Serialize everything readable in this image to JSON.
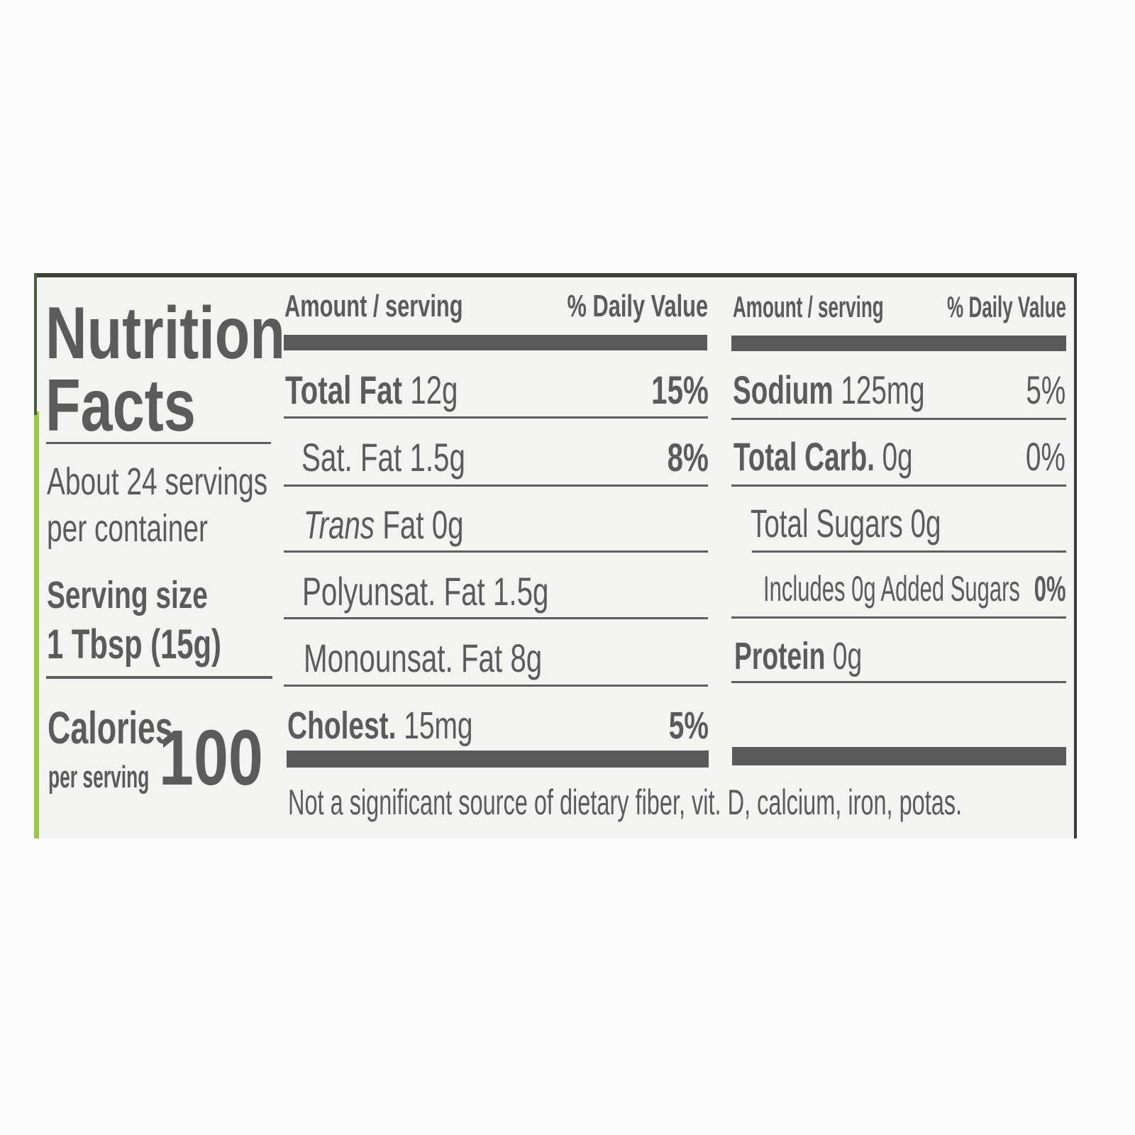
{
  "title_line1": "Nutrition",
  "title_line2": "Facts",
  "servings_line1": "About 24 servings",
  "servings_line2": "per container",
  "serving_size_label": "Serving size",
  "serving_size_value": "1 Tbsp (15g)",
  "calories_label": "Calories",
  "calories_sub": "per serving",
  "calories_value": "100",
  "left_table": {
    "header_amount": "Amount / serving",
    "header_dv": "% Daily Value",
    "rows": [
      {
        "name": "Total Fat",
        "amount": "12g",
        "dv": "15%"
      },
      {
        "name": "Sat. Fat",
        "amount": "1.5g",
        "dv": "8%"
      },
      {
        "name": "Trans",
        "name_rest": "Fat",
        "amount": "0g",
        "dv": ""
      },
      {
        "name": "Polyunsat. Fat",
        "amount": "1.5g",
        "dv": ""
      },
      {
        "name": "Monounsat. Fat",
        "amount": "8g",
        "dv": ""
      },
      {
        "name": "Cholest.",
        "amount": "15mg",
        "dv": "5%"
      }
    ]
  },
  "right_table": {
    "header_amount": "Amount / serving",
    "header_dv": "% Daily Value",
    "rows": [
      {
        "name": "Sodium",
        "amount": "125mg",
        "dv": "5%"
      },
      {
        "name": "Total Carb.",
        "amount": "0g",
        "dv": "0%"
      },
      {
        "name": "Total Sugars",
        "amount": "0g",
        "dv": ""
      },
      {
        "name": "Includes 0g Added Sugars",
        "amount": "",
        "dv": "0%"
      },
      {
        "name": "Protein",
        "amount": "0g",
        "dv": ""
      }
    ]
  },
  "footnote": "Not a significant source of dietary fiber, vit. D, calcium, iron, potas.",
  "colors": {
    "ink": "#5b5b5b",
    "label_bg": "#f3f4f2",
    "accent_green": "#9cc54a"
  }
}
